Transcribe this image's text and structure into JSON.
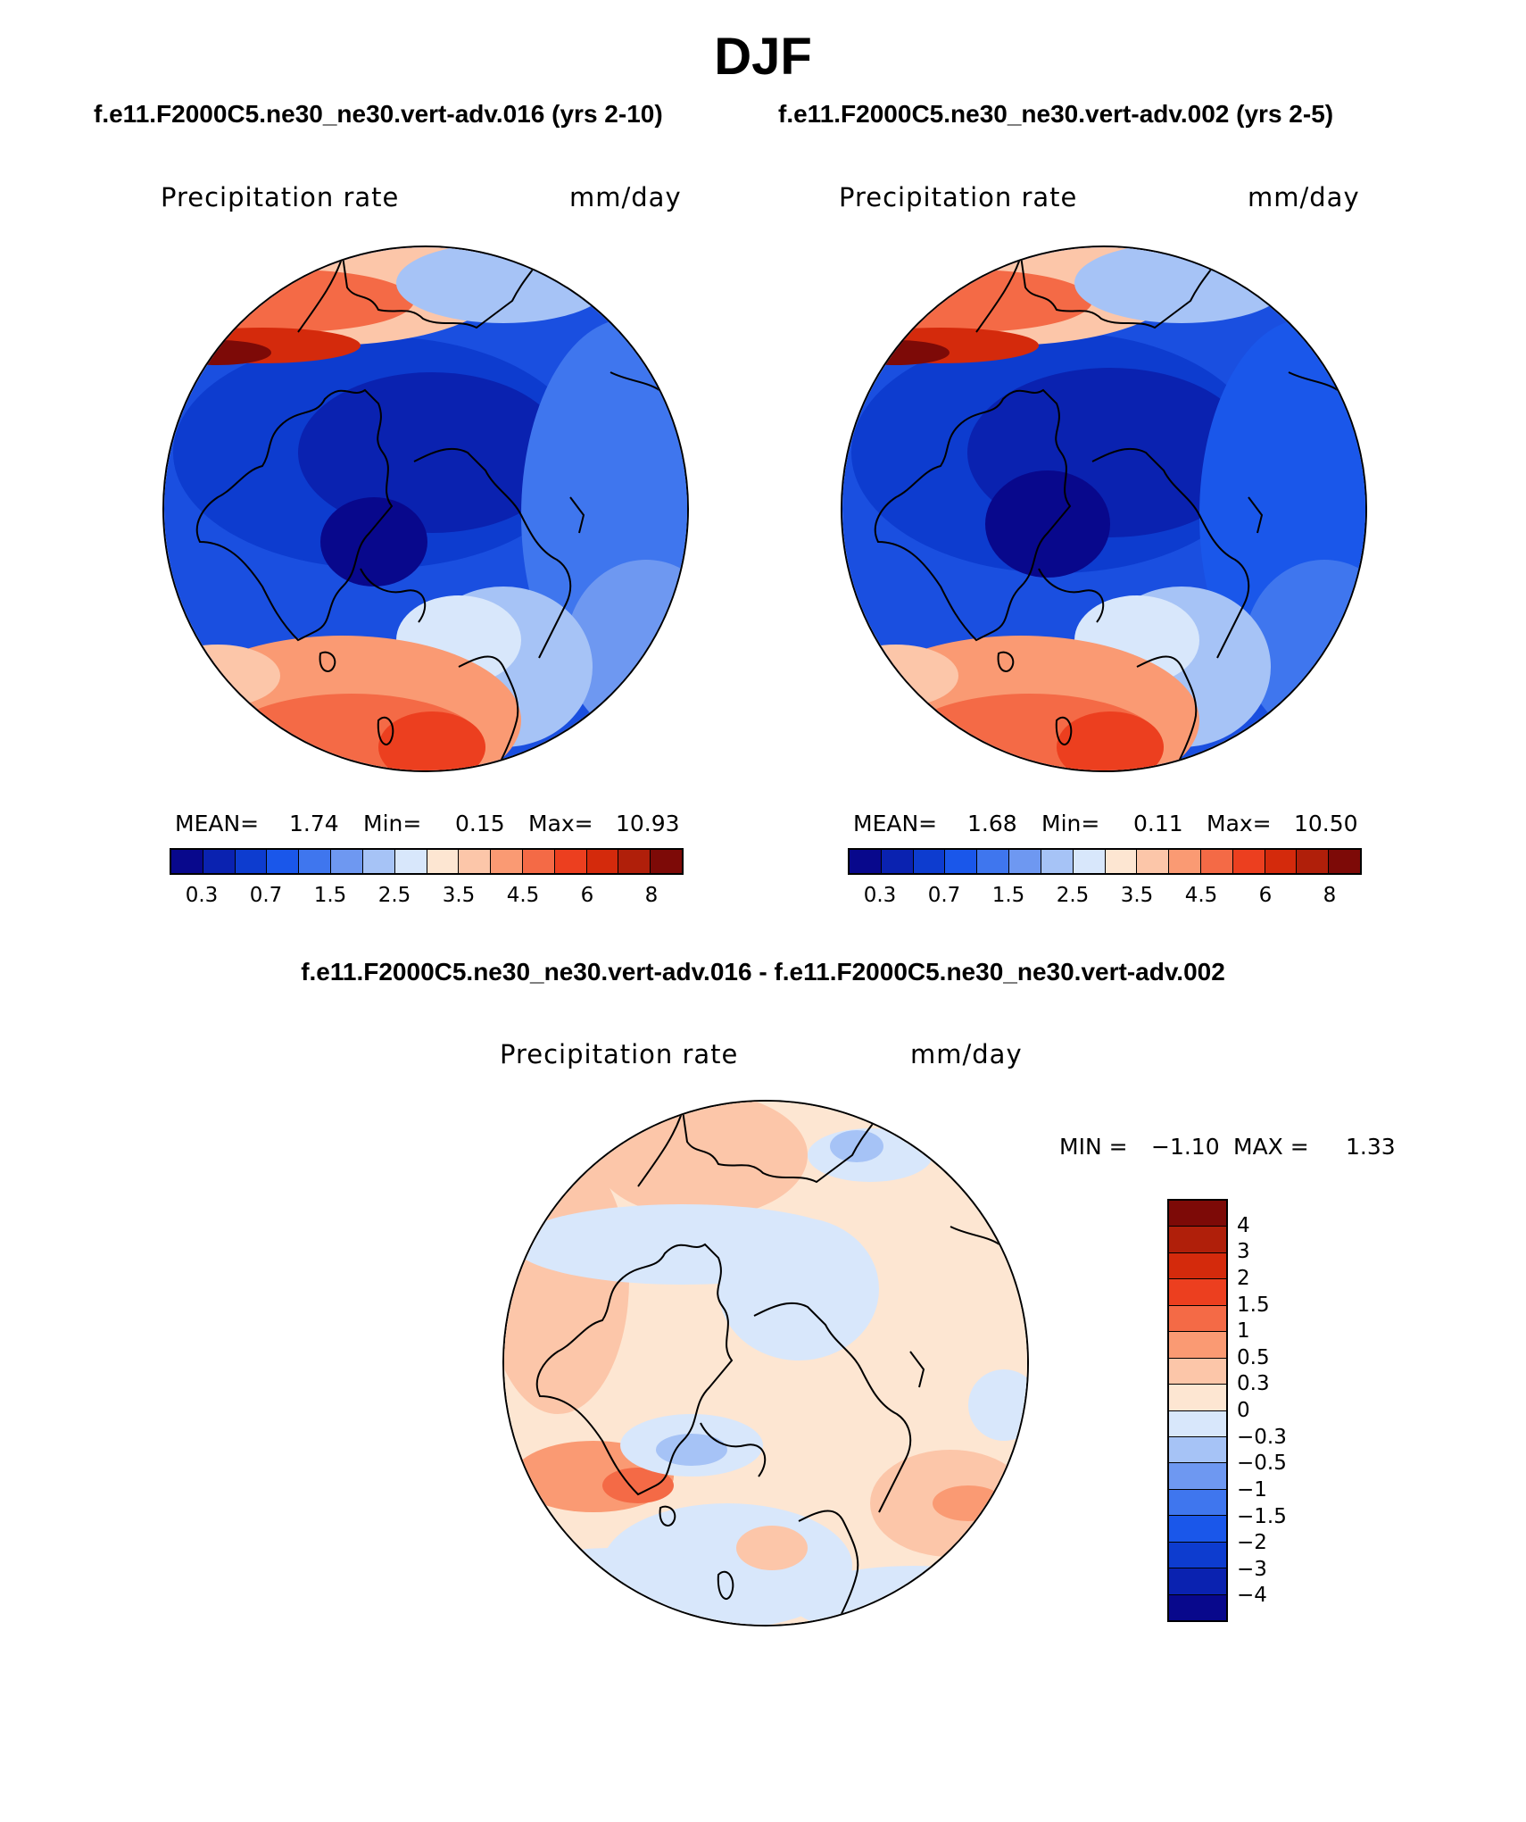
{
  "title": "DJF",
  "panels": {
    "left": {
      "case_title": "f.e11.F2000C5.ne30_ne30.vert-adv.016 (yrs 2-10)",
      "variable": "Precipitation rate",
      "units": "mm/day",
      "stats": {
        "mean_label": "MEAN=",
        "mean": "1.74",
        "min_label": "Min=",
        "min": "0.15",
        "max_label": "Max=",
        "max": "10.93"
      }
    },
    "right": {
      "case_title": "f.e11.F2000C5.ne30_ne30.vert-adv.002 (yrs 2-5)",
      "variable": "Precipitation rate",
      "units": "mm/day",
      "stats": {
        "mean_label": "MEAN=",
        "mean": "1.68",
        "min_label": "Min=",
        "min": "0.11",
        "max_label": "Max=",
        "max": "10.50"
      }
    },
    "diff": {
      "case_title": "f.e11.F2000C5.ne30_ne30.vert-adv.016 - f.e11.F2000C5.ne30_ne30.vert-adv.002",
      "variable": "Precipitation rate",
      "units": "mm/day",
      "stats": {
        "min_label": "MIN =",
        "min": "−1.10",
        "max_label": "MAX =",
        "max": "1.33"
      }
    }
  },
  "colorbar_abs": {
    "colors": [
      "#08088c",
      "#0a22b0",
      "#0d3ccf",
      "#1a57ea",
      "#3f76ee",
      "#6e98f1",
      "#a6c3f6",
      "#d8e7fb",
      "#fde6d2",
      "#fcc6a9",
      "#fa9a73",
      "#f46a46",
      "#ec3f1f",
      "#d42a0c",
      "#b01f0a",
      "#7d0a07"
    ],
    "tick_labels": [
      "0.3",
      "0.7",
      "1.5",
      "2.5",
      "3.5",
      "4.5",
      "6",
      "8"
    ]
  },
  "colorbar_diff": {
    "colors": [
      "#7d0a07",
      "#b01f0a",
      "#d42a0c",
      "#ec3f1f",
      "#f46a46",
      "#fa9a73",
      "#fcc6a9",
      "#fde6d2",
      "#d8e7fb",
      "#a6c3f6",
      "#6e98f1",
      "#3f76ee",
      "#1a57ea",
      "#0d3ccf",
      "#0a22b0",
      "#08088c"
    ],
    "tick_labels": [
      "4",
      "3",
      "2",
      "1.5",
      "1",
      "0.5",
      "0.3",
      "0",
      "−0.3",
      "−0.5",
      "−1",
      "−1.5",
      "−2",
      "−3",
      "−4"
    ]
  }
}
